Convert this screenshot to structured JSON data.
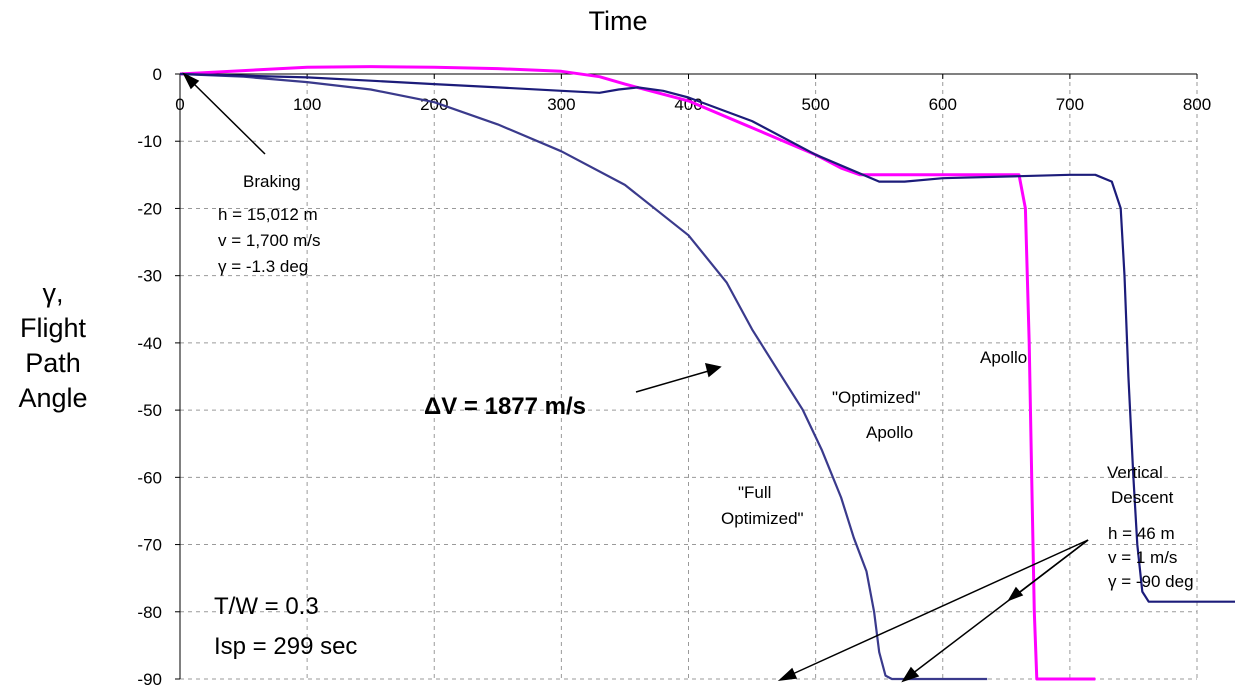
{
  "chart_data": {
    "type": "line",
    "title": "Time",
    "ylabel_lines": [
      "γ,",
      "Flight",
      "Path",
      "Angle"
    ],
    "xlim": [
      0,
      800
    ],
    "ylim": [
      -90,
      0
    ],
    "x_ticks": [
      "0",
      "100",
      "200",
      "300",
      "400",
      "500",
      "600",
      "700",
      "800"
    ],
    "y_ticks": [
      "0",
      "-10",
      "-20",
      "-30",
      "-40",
      "-50",
      "-60",
      "-70",
      "-80",
      "-90"
    ],
    "grid": true,
    "series": [
      {
        "name": "\"Full Optimized\"",
        "color": "#3a3a8c",
        "points": [
          [
            0,
            0
          ],
          [
            50,
            -0.4
          ],
          [
            100,
            -1.2
          ],
          [
            150,
            -2.3
          ],
          [
            200,
            -4.2
          ],
          [
            250,
            -7.5
          ],
          [
            300,
            -11.5
          ],
          [
            350,
            -16.5
          ],
          [
            400,
            -24
          ],
          [
            430,
            -31
          ],
          [
            450,
            -38
          ],
          [
            470,
            -44
          ],
          [
            490,
            -50
          ],
          [
            505,
            -56
          ],
          [
            520,
            -63
          ],
          [
            530,
            -69
          ],
          [
            540,
            -74
          ],
          [
            546,
            -80
          ],
          [
            550,
            -86
          ],
          [
            555,
            -89.5
          ],
          [
            560,
            -90
          ],
          [
            600,
            -90
          ],
          [
            635,
            -90
          ]
        ]
      },
      {
        "name": "\"Optimized\" Apollo",
        "color": "#ff00ff",
        "points": [
          [
            0,
            0
          ],
          [
            50,
            0.5
          ],
          [
            100,
            1
          ],
          [
            150,
            1.1
          ],
          [
            200,
            1
          ],
          [
            250,
            0.8
          ],
          [
            300,
            0.4
          ],
          [
            330,
            -0.4
          ],
          [
            350,
            -1.5
          ],
          [
            400,
            -4
          ],
          [
            450,
            -8
          ],
          [
            500,
            -12
          ],
          [
            520,
            -14
          ],
          [
            535,
            -15
          ],
          [
            600,
            -15
          ],
          [
            660,
            -15
          ],
          [
            665,
            -20
          ],
          [
            668,
            -40
          ],
          [
            670,
            -60
          ],
          [
            672,
            -80
          ],
          [
            674,
            -90
          ],
          [
            720,
            -90
          ]
        ]
      },
      {
        "name": "Apollo",
        "color": "#1c1c7a",
        "points": [
          [
            0,
            0
          ],
          [
            100,
            -0.5
          ],
          [
            150,
            -1
          ],
          [
            200,
            -1.5
          ],
          [
            250,
            -2
          ],
          [
            300,
            -2.5
          ],
          [
            330,
            -2.8
          ],
          [
            345,
            -2.3
          ],
          [
            360,
            -2
          ],
          [
            380,
            -2.5
          ],
          [
            400,
            -3.5
          ],
          [
            450,
            -7
          ],
          [
            500,
            -12
          ],
          [
            550,
            -16
          ],
          [
            570,
            -16
          ],
          [
            600,
            -15.5
          ],
          [
            660,
            -15.2
          ],
          [
            700,
            -15
          ],
          [
            720,
            -15
          ],
          [
            733,
            -16
          ],
          [
            740,
            -20
          ],
          [
            743,
            -30
          ],
          [
            746,
            -45
          ],
          [
            750,
            -60
          ],
          [
            753,
            -70
          ],
          [
            757,
            -77
          ],
          [
            762,
            -78.5
          ],
          [
            800,
            -78.5
          ],
          [
            830,
            -78.5
          ]
        ]
      }
    ],
    "annotations": {
      "braking_title": "Braking",
      "braking_h": "h = 15,012 m",
      "braking_v": "v = 1,700 m/s",
      "braking_g": "γ = -1.3 deg",
      "dv": "ΔV  = 1877 m/s",
      "full_opt_1": "\"Full",
      "full_opt_2": "Optimized\"",
      "opt_apollo_1": "\"Optimized\"",
      "opt_apollo_2": "Apollo",
      "apollo": "Apollo",
      "vd_1": "Vertical",
      "vd_2": "Descent",
      "vd_h": "h = 46 m",
      "vd_v": "v =   1 m/s",
      "vd_g": "γ = -90 deg",
      "tw": "T/W = 0.3",
      "isp": "Isp = 299 sec"
    }
  }
}
